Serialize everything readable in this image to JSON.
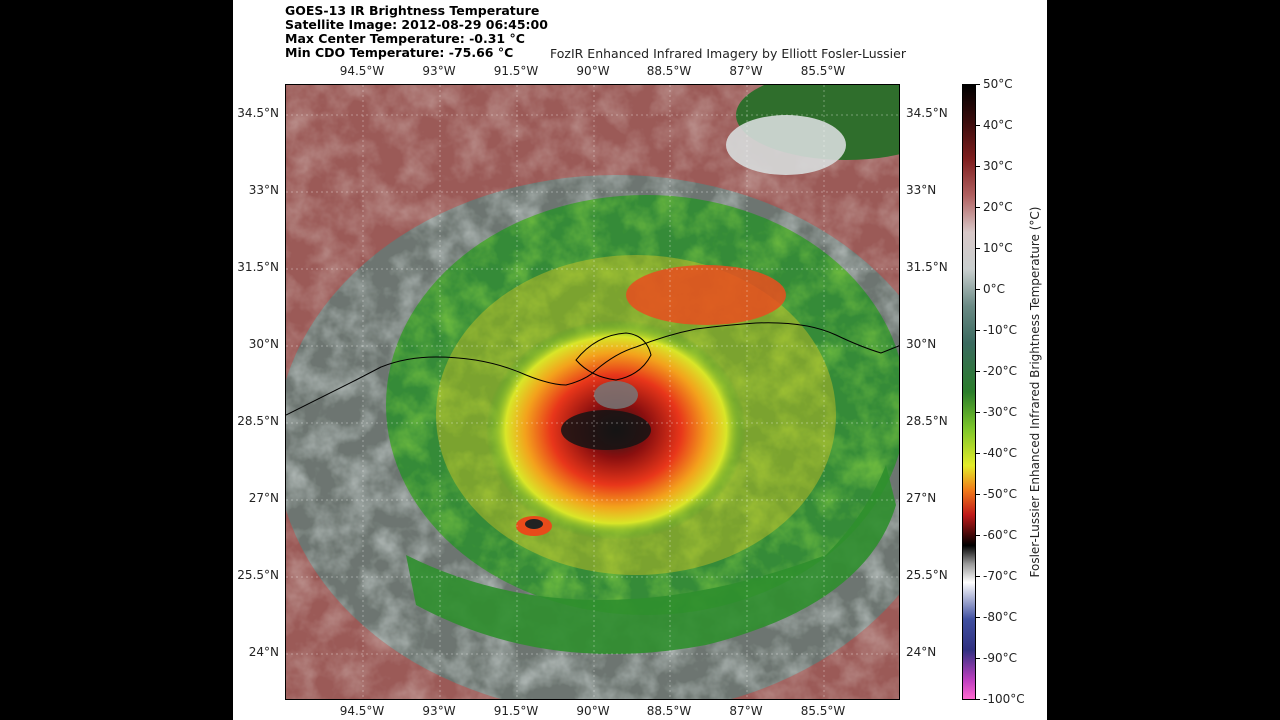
{
  "header": {
    "line1": "GOES-13 IR Brightness Temperature",
    "line2": "Satellite Image: 2012-08-29 06:45:00",
    "line3": "Max Center Temperature: -0.31 °C",
    "line4": "Min CDO Temperature: -75.66 °C",
    "credit": "FozIR Enhanced Infrared Imagery by Elliott Fosler-Lussier"
  },
  "map": {
    "lon_ticks": [
      "94.5°W",
      "93°W",
      "91.5°W",
      "90°W",
      "88.5°W",
      "87°W",
      "85.5°W"
    ],
    "lat_ticks": [
      "34.5°N",
      "33°N",
      "31.5°N",
      "30°N",
      "28.5°N",
      "27°N",
      "25.5°N",
      "24°N"
    ]
  },
  "colorbar": {
    "label": "Fosler-Lussier Enhanced Infrared Brightness Temperature (°C)",
    "ticks": [
      "50°C",
      "40°C",
      "30°C",
      "20°C",
      "10°C",
      "0°C",
      "-10°C",
      "-20°C",
      "-30°C",
      "-40°C",
      "-50°C",
      "-60°C",
      "-70°C",
      "-80°C",
      "-90°C",
      "-100°C"
    ]
  }
}
